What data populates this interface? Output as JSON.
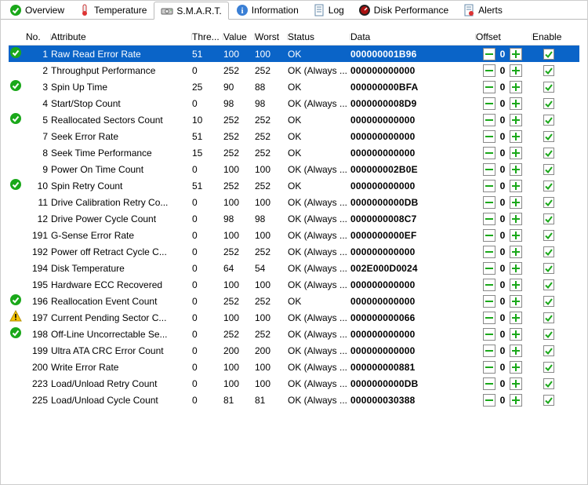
{
  "colors": {
    "selected_row_bg": "#0a64c8",
    "ok_green": "#1aa81a",
    "warn_yellow": "#f6c400",
    "plus_green": "#1aa81a",
    "minus_green": "#1aa81a",
    "check_green": "#1aa81a",
    "border_gray": "#888888"
  },
  "tabs": [
    {
      "id": "overview",
      "label": "Overview",
      "icon": "check-icon",
      "active": false
    },
    {
      "id": "temperature",
      "label": "Temperature",
      "icon": "thermometer-icon",
      "active": false
    },
    {
      "id": "smart",
      "label": "S.M.A.R.T.",
      "icon": "drive-icon",
      "active": true
    },
    {
      "id": "information",
      "label": "Information",
      "icon": "info-icon",
      "active": false
    },
    {
      "id": "log",
      "label": "Log",
      "icon": "doc-icon",
      "active": false
    },
    {
      "id": "disk-performance",
      "label": "Disk Performance",
      "icon": "gauge-icon",
      "active": false
    },
    {
      "id": "alerts",
      "label": "Alerts",
      "icon": "alert-doc-icon",
      "active": false
    }
  ],
  "columns": {
    "no": "No.",
    "attribute": "Attribute",
    "threshold": "Thre...",
    "value": "Value",
    "worst": "Worst",
    "status": "Status",
    "data": "Data",
    "offset": "Offset",
    "enable": "Enable"
  },
  "rows": [
    {
      "icon": "ok",
      "no": "1",
      "attribute": "Raw Read Error Rate",
      "thre": "51",
      "value": "100",
      "worst": "100",
      "status": "OK",
      "data": "000000001B96",
      "offset": "0",
      "enable": true,
      "selected": true
    },
    {
      "icon": "",
      "no": "2",
      "attribute": "Throughput Performance",
      "thre": "0",
      "value": "252",
      "worst": "252",
      "status": "OK (Always ...",
      "data": "000000000000",
      "offset": "0",
      "enable": true
    },
    {
      "icon": "ok",
      "no": "3",
      "attribute": "Spin Up Time",
      "thre": "25",
      "value": "90",
      "worst": "88",
      "status": "OK",
      "data": "000000000BFA",
      "offset": "0",
      "enable": true
    },
    {
      "icon": "",
      "no": "4",
      "attribute": "Start/Stop Count",
      "thre": "0",
      "value": "98",
      "worst": "98",
      "status": "OK (Always ...",
      "data": "0000000008D9",
      "offset": "0",
      "enable": true
    },
    {
      "icon": "ok",
      "no": "5",
      "attribute": "Reallocated Sectors Count",
      "thre": "10",
      "value": "252",
      "worst": "252",
      "status": "OK",
      "data": "000000000000",
      "offset": "0",
      "enable": true
    },
    {
      "icon": "",
      "no": "7",
      "attribute": "Seek Error Rate",
      "thre": "51",
      "value": "252",
      "worst": "252",
      "status": "OK",
      "data": "000000000000",
      "offset": "0",
      "enable": true
    },
    {
      "icon": "",
      "no": "8",
      "attribute": "Seek Time Performance",
      "thre": "15",
      "value": "252",
      "worst": "252",
      "status": "OK",
      "data": "000000000000",
      "offset": "0",
      "enable": true
    },
    {
      "icon": "",
      "no": "9",
      "attribute": "Power On Time Count",
      "thre": "0",
      "value": "100",
      "worst": "100",
      "status": "OK (Always ...",
      "data": "000000002B0E",
      "offset": "0",
      "enable": true
    },
    {
      "icon": "ok",
      "no": "10",
      "attribute": "Spin Retry Count",
      "thre": "51",
      "value": "252",
      "worst": "252",
      "status": "OK",
      "data": "000000000000",
      "offset": "0",
      "enable": true
    },
    {
      "icon": "",
      "no": "11",
      "attribute": "Drive Calibration Retry Co...",
      "thre": "0",
      "value": "100",
      "worst": "100",
      "status": "OK (Always ...",
      "data": "0000000000DB",
      "offset": "0",
      "enable": true
    },
    {
      "icon": "",
      "no": "12",
      "attribute": "Drive Power Cycle Count",
      "thre": "0",
      "value": "98",
      "worst": "98",
      "status": "OK (Always ...",
      "data": "0000000008C7",
      "offset": "0",
      "enable": true
    },
    {
      "icon": "",
      "no": "191",
      "attribute": "G-Sense Error Rate",
      "thre": "0",
      "value": "100",
      "worst": "100",
      "status": "OK (Always ...",
      "data": "0000000000EF",
      "offset": "0",
      "enable": true
    },
    {
      "icon": "",
      "no": "192",
      "attribute": "Power off Retract Cycle C...",
      "thre": "0",
      "value": "252",
      "worst": "252",
      "status": "OK (Always ...",
      "data": "000000000000",
      "offset": "0",
      "enable": true
    },
    {
      "icon": "",
      "no": "194",
      "attribute": "Disk Temperature",
      "thre": "0",
      "value": "64",
      "worst": "54",
      "status": "OK (Always ...",
      "data": "002E000D0024",
      "offset": "0",
      "enable": true
    },
    {
      "icon": "",
      "no": "195",
      "attribute": "Hardware ECC Recovered",
      "thre": "0",
      "value": "100",
      "worst": "100",
      "status": "OK (Always ...",
      "data": "000000000000",
      "offset": "0",
      "enable": true
    },
    {
      "icon": "ok",
      "no": "196",
      "attribute": "Reallocation Event Count",
      "thre": "0",
      "value": "252",
      "worst": "252",
      "status": "OK",
      "data": "000000000000",
      "offset": "0",
      "enable": true
    },
    {
      "icon": "warn",
      "no": "197",
      "attribute": "Current Pending Sector C...",
      "thre": "0",
      "value": "100",
      "worst": "100",
      "status": "OK (Always ...",
      "data": "000000000066",
      "offset": "0",
      "enable": true
    },
    {
      "icon": "ok",
      "no": "198",
      "attribute": "Off-Line Uncorrectable Se...",
      "thre": "0",
      "value": "252",
      "worst": "252",
      "status": "OK (Always ...",
      "data": "000000000000",
      "offset": "0",
      "enable": true
    },
    {
      "icon": "",
      "no": "199",
      "attribute": "Ultra ATA CRC Error Count",
      "thre": "0",
      "value": "200",
      "worst": "200",
      "status": "OK (Always ...",
      "data": "000000000000",
      "offset": "0",
      "enable": true
    },
    {
      "icon": "",
      "no": "200",
      "attribute": "Write Error Rate",
      "thre": "0",
      "value": "100",
      "worst": "100",
      "status": "OK (Always ...",
      "data": "000000000881",
      "offset": "0",
      "enable": true
    },
    {
      "icon": "",
      "no": "223",
      "attribute": "Load/Unload Retry Count",
      "thre": "0",
      "value": "100",
      "worst": "100",
      "status": "OK (Always ...",
      "data": "0000000000DB",
      "offset": "0",
      "enable": true
    },
    {
      "icon": "",
      "no": "225",
      "attribute": "Load/Unload Cycle Count",
      "thre": "0",
      "value": "81",
      "worst": "81",
      "status": "OK (Always ...",
      "data": "000000030388",
      "offset": "0",
      "enable": true
    }
  ]
}
